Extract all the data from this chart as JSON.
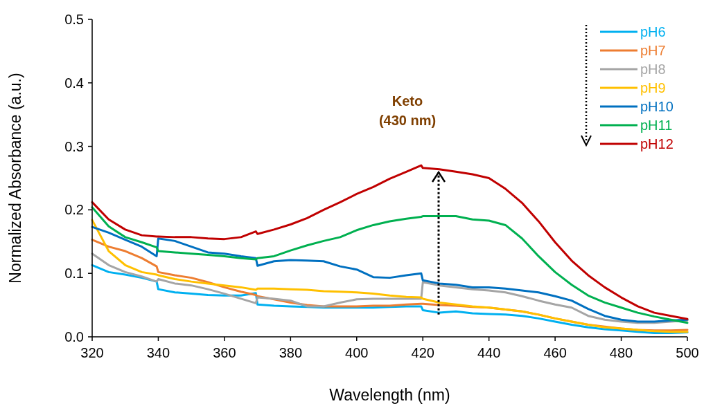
{
  "chart_data": {
    "type": "line",
    "xlabel": "Wavelength (nm)",
    "ylabel": "Normalized Absorbance (a.u.)",
    "x": [
      320,
      325,
      330,
      335,
      339.5,
      340,
      345,
      350,
      355,
      360,
      365,
      369.5,
      370,
      375,
      380,
      385,
      390,
      395,
      400,
      405,
      410,
      415,
      419.5,
      420,
      425,
      430,
      435,
      440,
      445,
      450,
      455,
      460,
      465,
      470,
      475,
      480,
      485,
      490,
      495,
      500
    ],
    "series": [
      {
        "name": "pH6",
        "color": "#00b0f0",
        "values": [
          0.113,
          0.102,
          0.098,
          0.093,
          0.087,
          0.075,
          0.07,
          0.068,
          0.066,
          0.065,
          0.065,
          0.069,
          0.051,
          0.049,
          0.048,
          0.047,
          0.046,
          0.046,
          0.046,
          0.046,
          0.047,
          0.048,
          0.048,
          0.042,
          0.038,
          0.04,
          0.037,
          0.036,
          0.035,
          0.033,
          0.029,
          0.024,
          0.019,
          0.015,
          0.012,
          0.01,
          0.008,
          0.006,
          0.006,
          0.007
        ]
      },
      {
        "name": "pH7",
        "color": "#ed7d31",
        "values": [
          0.153,
          0.142,
          0.135,
          0.124,
          0.111,
          0.102,
          0.097,
          0.093,
          0.086,
          0.078,
          0.071,
          0.066,
          0.064,
          0.059,
          0.054,
          0.05,
          0.048,
          0.048,
          0.048,
          0.049,
          0.049,
          0.051,
          0.052,
          0.052,
          0.05,
          0.049,
          0.047,
          0.046,
          0.043,
          0.04,
          0.035,
          0.029,
          0.024,
          0.019,
          0.016,
          0.013,
          0.011,
          0.01,
          0.01,
          0.011
        ]
      },
      {
        "name": "pH8",
        "color": "#a5a5a5",
        "values": [
          0.131,
          0.113,
          0.102,
          0.095,
          0.087,
          0.091,
          0.084,
          0.081,
          0.075,
          0.068,
          0.06,
          0.053,
          0.062,
          0.06,
          0.057,
          0.048,
          0.048,
          0.054,
          0.059,
          0.06,
          0.06,
          0.06,
          0.06,
          0.086,
          0.081,
          0.078,
          0.075,
          0.073,
          0.07,
          0.064,
          0.057,
          0.051,
          0.046,
          0.033,
          0.027,
          0.024,
          0.022,
          0.022,
          0.024,
          0.026
        ]
      },
      {
        "name": "pH9",
        "color": "#ffc000",
        "values": [
          0.184,
          0.135,
          0.113,
          0.102,
          0.098,
          0.097,
          0.091,
          0.087,
          0.084,
          0.081,
          0.078,
          0.074,
          0.076,
          0.076,
          0.075,
          0.074,
          0.072,
          0.071,
          0.07,
          0.068,
          0.065,
          0.063,
          0.062,
          0.06,
          0.054,
          0.051,
          0.048,
          0.046,
          0.043,
          0.04,
          0.035,
          0.029,
          0.024,
          0.019,
          0.015,
          0.013,
          0.011,
          0.009,
          0.008,
          0.008
        ]
      },
      {
        "name": "pH10",
        "color": "#0070c0",
        "values": [
          0.173,
          0.164,
          0.153,
          0.142,
          0.127,
          0.155,
          0.151,
          0.142,
          0.133,
          0.131,
          0.127,
          0.124,
          0.112,
          0.119,
          0.121,
          0.12,
          0.119,
          0.111,
          0.106,
          0.094,
          0.093,
          0.097,
          0.1,
          0.089,
          0.084,
          0.082,
          0.078,
          0.078,
          0.076,
          0.073,
          0.07,
          0.064,
          0.057,
          0.044,
          0.033,
          0.027,
          0.024,
          0.024,
          0.026,
          0.027
        ]
      },
      {
        "name": "pH11",
        "color": "#00b050",
        "values": [
          0.204,
          0.174,
          0.157,
          0.149,
          0.141,
          0.135,
          0.133,
          0.131,
          0.129,
          0.127,
          0.124,
          0.122,
          0.124,
          0.127,
          0.136,
          0.144,
          0.151,
          0.157,
          0.168,
          0.176,
          0.182,
          0.186,
          0.189,
          0.19,
          0.19,
          0.19,
          0.185,
          0.183,
          0.176,
          0.155,
          0.127,
          0.102,
          0.082,
          0.065,
          0.054,
          0.046,
          0.038,
          0.032,
          0.027,
          0.022
        ]
      },
      {
        "name": "pH12",
        "color": "#c00000",
        "values": [
          0.212,
          0.185,
          0.169,
          0.16,
          0.158,
          0.158,
          0.157,
          0.157,
          0.155,
          0.154,
          0.157,
          0.166,
          0.162,
          0.169,
          0.177,
          0.187,
          0.2,
          0.212,
          0.225,
          0.236,
          0.249,
          0.26,
          0.27,
          0.266,
          0.264,
          0.26,
          0.256,
          0.25,
          0.233,
          0.211,
          0.182,
          0.149,
          0.12,
          0.097,
          0.078,
          0.062,
          0.048,
          0.038,
          0.033,
          0.028
        ]
      }
    ],
    "xlim": [
      320,
      500
    ],
    "xticks": [
      320,
      340,
      360,
      380,
      400,
      420,
      440,
      460,
      480,
      500
    ],
    "ylim": [
      0,
      0.5
    ],
    "yticks": [
      {
        "value": 0,
        "label": "0.0"
      },
      0.1,
      0.2,
      0.3,
      0.4,
      0.5
    ],
    "annotations": [
      "Keto\n(430 nm)"
    ],
    "legend": "top right",
    "grid": false,
    "marker": "none",
    "line_style": "solid"
  }
}
